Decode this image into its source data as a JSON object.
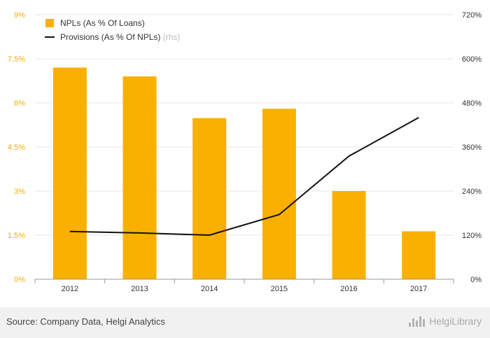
{
  "chart_data": {
    "type": "bar+line",
    "categories": [
      "2012",
      "2013",
      "2014",
      "2015",
      "2016",
      "2017"
    ],
    "series": [
      {
        "name": "NPLs (As % Of Loans)",
        "axis": "left",
        "kind": "bar",
        "color": "#f9b000",
        "values": [
          7.2,
          6.9,
          5.48,
          5.8,
          3.0,
          1.63
        ]
      },
      {
        "name": "Provisions (As % Of NPLs)",
        "axis": "right",
        "kind": "line",
        "color": "#111111",
        "values": [
          130,
          126,
          120,
          176,
          335,
          440
        ]
      }
    ],
    "y_left": {
      "min": 0,
      "max": 9,
      "ticks": [
        0,
        1.5,
        3,
        4.5,
        6,
        7.5,
        9
      ],
      "tick_labels": [
        "0%",
        "1.5%",
        "3%",
        "4.5%",
        "6%",
        "7.5%",
        "9%"
      ]
    },
    "y_right": {
      "min": 0,
      "max": 720,
      "ticks": [
        0,
        120,
        240,
        360,
        480,
        600,
        720
      ],
      "tick_labels": [
        "0%",
        "120%",
        "240%",
        "360%",
        "480%",
        "600%",
        "720%"
      ]
    },
    "legend": {
      "placement": "top-left",
      "items": [
        {
          "label": "NPLs (As % Of Loans)",
          "note": "",
          "marker": "square",
          "color": "#f9b000"
        },
        {
          "label": "Provisions (As % Of NPLs)",
          "note": "(rhs)",
          "marker": "line",
          "color": "#111111"
        }
      ]
    },
    "grid": true
  },
  "footer": {
    "source": "Source: Company Data, Helgi Analytics",
    "brand": "HelgiLibrary"
  },
  "colors": {
    "left_axis": "#f5ad00",
    "grid": "#e6e6e6"
  }
}
